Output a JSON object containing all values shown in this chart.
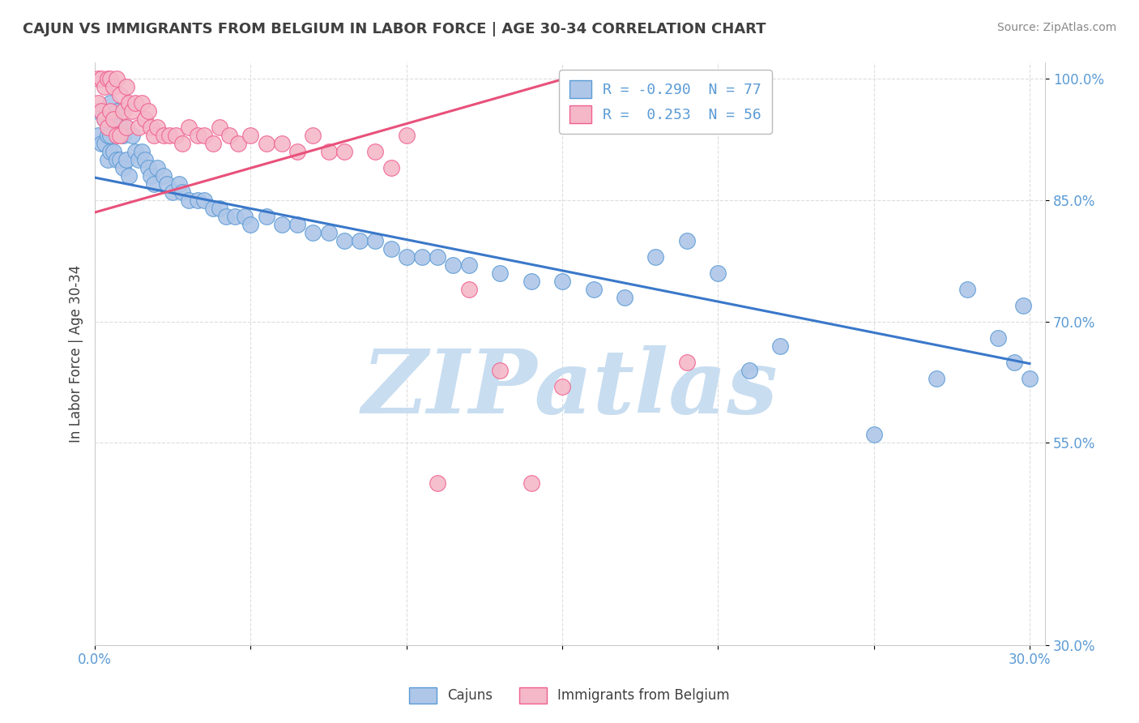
{
  "title": "CAJUN VS IMMIGRANTS FROM BELGIUM IN LABOR FORCE | AGE 30-34 CORRELATION CHART",
  "source": "Source: ZipAtlas.com",
  "ylabel": "In Labor Force | Age 30-34",
  "xlim": [
    0.0,
    0.305
  ],
  "ylim": [
    0.3,
    1.02
  ],
  "xticks": [
    0.0,
    0.05,
    0.1,
    0.15,
    0.2,
    0.25,
    0.3
  ],
  "xticklabels": [
    "0.0%",
    "",
    "",
    "",
    "",
    "",
    "30.0%"
  ],
  "yticks": [
    0.3,
    0.55,
    0.7,
    0.85,
    1.0
  ],
  "yticklabels": [
    "30.0%",
    "55.0%",
    "70.0%",
    "85.0%",
    "100.0%"
  ],
  "legend1_label": "R = -0.290  N = 77",
  "legend2_label": "R =  0.253  N = 56",
  "cajun_color": "#aec6e8",
  "belgium_color": "#f4b8c8",
  "cajun_edge_color": "#5b9bd5",
  "belgium_edge_color": "#f06090",
  "cajun_line_color": "#3a78c9",
  "belgium_line_color": "#e8517a",
  "watermark_text": "ZIPatlas",
  "watermark_color": "#c8ddf0",
  "background_color": "#ffffff",
  "grid_color": "#dddddd",
  "tick_color": "#5b9bd5",
  "title_color": "#404040",
  "legend_text_color": "#5b9bd5",
  "cajun_trend_x0": 0.0,
  "cajun_trend_x1": 0.3,
  "cajun_trend_y0": 0.878,
  "cajun_trend_y1": 0.648,
  "belgium_trend_x0": 0.0,
  "belgium_trend_x1": 0.155,
  "belgium_trend_y0": 0.835,
  "belgium_trend_y1": 1.005,
  "cajun_x": [
    0.001,
    0.001,
    0.002,
    0.002,
    0.003,
    0.003,
    0.004,
    0.004,
    0.004,
    0.005,
    0.005,
    0.005,
    0.006,
    0.006,
    0.007,
    0.007,
    0.008,
    0.008,
    0.009,
    0.009,
    0.01,
    0.01,
    0.011,
    0.012,
    0.013,
    0.014,
    0.015,
    0.016,
    0.017,
    0.018,
    0.019,
    0.02,
    0.022,
    0.023,
    0.025,
    0.027,
    0.028,
    0.03,
    0.033,
    0.035,
    0.038,
    0.04,
    0.042,
    0.045,
    0.048,
    0.05,
    0.055,
    0.06,
    0.065,
    0.07,
    0.075,
    0.08,
    0.085,
    0.09,
    0.095,
    0.1,
    0.105,
    0.11,
    0.115,
    0.12,
    0.13,
    0.14,
    0.15,
    0.16,
    0.17,
    0.18,
    0.19,
    0.2,
    0.21,
    0.22,
    0.25,
    0.27,
    0.28,
    0.29,
    0.295,
    0.298,
    0.3
  ],
  "cajun_y": [
    0.96,
    0.93,
    0.96,
    0.92,
    0.95,
    0.92,
    0.95,
    0.93,
    0.9,
    0.97,
    0.93,
    0.91,
    0.95,
    0.91,
    0.96,
    0.9,
    0.94,
    0.9,
    0.93,
    0.89,
    0.94,
    0.9,
    0.88,
    0.93,
    0.91,
    0.9,
    0.91,
    0.9,
    0.89,
    0.88,
    0.87,
    0.89,
    0.88,
    0.87,
    0.86,
    0.87,
    0.86,
    0.85,
    0.85,
    0.85,
    0.84,
    0.84,
    0.83,
    0.83,
    0.83,
    0.82,
    0.83,
    0.82,
    0.82,
    0.81,
    0.81,
    0.8,
    0.8,
    0.8,
    0.79,
    0.78,
    0.78,
    0.78,
    0.77,
    0.77,
    0.76,
    0.75,
    0.75,
    0.74,
    0.73,
    0.78,
    0.8,
    0.76,
    0.64,
    0.67,
    0.56,
    0.63,
    0.74,
    0.68,
    0.65,
    0.72,
    0.63
  ],
  "belgium_x": [
    0.001,
    0.001,
    0.002,
    0.002,
    0.003,
    0.003,
    0.004,
    0.004,
    0.005,
    0.005,
    0.006,
    0.006,
    0.007,
    0.007,
    0.008,
    0.008,
    0.009,
    0.01,
    0.01,
    0.011,
    0.012,
    0.013,
    0.014,
    0.015,
    0.016,
    0.017,
    0.018,
    0.019,
    0.02,
    0.022,
    0.024,
    0.026,
    0.028,
    0.03,
    0.033,
    0.035,
    0.038,
    0.04,
    0.043,
    0.046,
    0.05,
    0.055,
    0.06,
    0.065,
    0.07,
    0.075,
    0.08,
    0.09,
    0.095,
    0.1,
    0.11,
    0.12,
    0.13,
    0.14,
    0.15,
    0.19
  ],
  "belgium_y": [
    1.0,
    0.97,
    1.0,
    0.96,
    0.99,
    0.95,
    1.0,
    0.94,
    1.0,
    0.96,
    0.99,
    0.95,
    1.0,
    0.93,
    0.98,
    0.93,
    0.96,
    0.99,
    0.94,
    0.97,
    0.96,
    0.97,
    0.94,
    0.97,
    0.95,
    0.96,
    0.94,
    0.93,
    0.94,
    0.93,
    0.93,
    0.93,
    0.92,
    0.94,
    0.93,
    0.93,
    0.92,
    0.94,
    0.93,
    0.92,
    0.93,
    0.92,
    0.92,
    0.91,
    0.93,
    0.91,
    0.91,
    0.91,
    0.89,
    0.93,
    0.5,
    0.74,
    0.64,
    0.5,
    0.62,
    0.65
  ]
}
